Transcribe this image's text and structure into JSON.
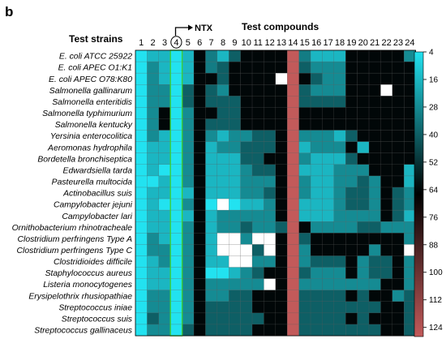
{
  "chart_data": {
    "type": "heatmap",
    "panel_label": "b",
    "title": "Test compounds",
    "row_header": "Test strains",
    "highlight_column": "4",
    "highlight_label": "NTX",
    "columns": [
      "1",
      "2",
      "3",
      "4",
      "5",
      "6",
      "7",
      "8",
      "9",
      "10",
      "11",
      "12",
      "13",
      "14",
      "15",
      "16",
      "17",
      "18",
      "19",
      "20",
      "21",
      "22",
      "23",
      "24"
    ],
    "rows": [
      "E. coli ATCC 25922",
      "E. coli APEC O1:K1",
      "E. coli APEC O78:K80",
      "Salmonella gallinarum",
      "Salmonella enteritidis",
      "Salmonella typhimurium",
      "Salmonella kentucky",
      "Yersinia enterocolitica",
      "Aeromonas hydrophila",
      "Bordetella bronchiseptica",
      "Edwardsiella tarda",
      "Pasteurella multocida",
      "Actinobacillus suis",
      "Campylobacter jejuni",
      "Campylobacter lari",
      "Ornithobacterium rhinotracheale",
      "Clostridium perfringens Type A",
      "Clostridium perfringens Type C",
      "Clostridioides difficile",
      "Staphylococcus aureus",
      "Listeria monocytogenes",
      "Erysipelothrix rhusiopathiae",
      "Streptococcus iniae",
      "Streptococcus suis",
      "Streptococcus gallinaceus"
    ],
    "values": [
      [
        4,
        16,
        16,
        4,
        16,
        64,
        32,
        16,
        40,
        64,
        64,
        64,
        64,
        128,
        32,
        16,
        16,
        16,
        64,
        64,
        64,
        64,
        64,
        28
      ],
      [
        4,
        28,
        16,
        4,
        16,
        64,
        32,
        40,
        64,
        64,
        64,
        64,
        64,
        128,
        40,
        28,
        28,
        28,
        64,
        64,
        64,
        64,
        64,
        64
      ],
      [
        4,
        28,
        16,
        4,
        16,
        64,
        64,
        40,
        64,
        64,
        64,
        64,
        128,
        128,
        64,
        40,
        28,
        28,
        64,
        64,
        64,
        64,
        64,
        64
      ],
      [
        4,
        28,
        28,
        4,
        40,
        64,
        40,
        28,
        64,
        64,
        64,
        64,
        64,
        128,
        40,
        28,
        28,
        28,
        64,
        64,
        64,
        128,
        64,
        64
      ],
      [
        4,
        28,
        28,
        4,
        40,
        64,
        40,
        40,
        40,
        64,
        64,
        64,
        64,
        128,
        40,
        40,
        40,
        40,
        64,
        64,
        64,
        64,
        64,
        64
      ],
      [
        4,
        28,
        64,
        4,
        28,
        64,
        64,
        40,
        40,
        64,
        64,
        64,
        64,
        128,
        64,
        64,
        64,
        64,
        64,
        64,
        64,
        64,
        64,
        64
      ],
      [
        4,
        28,
        64,
        4,
        28,
        64,
        40,
        40,
        40,
        64,
        64,
        64,
        64,
        128,
        64,
        64,
        64,
        64,
        64,
        64,
        64,
        64,
        64,
        64
      ],
      [
        4,
        28,
        16,
        4,
        28,
        64,
        28,
        16,
        28,
        28,
        40,
        40,
        64,
        128,
        28,
        28,
        28,
        16,
        40,
        64,
        64,
        64,
        64,
        64
      ],
      [
        4,
        16,
        16,
        4,
        28,
        64,
        16,
        28,
        28,
        40,
        40,
        40,
        64,
        128,
        16,
        28,
        28,
        28,
        64,
        16,
        64,
        64,
        64,
        64
      ],
      [
        4,
        16,
        16,
        4,
        28,
        64,
        16,
        16,
        16,
        40,
        40,
        64,
        64,
        128,
        28,
        16,
        16,
        16,
        40,
        64,
        64,
        64,
        64,
        64
      ],
      [
        4,
        16,
        4,
        4,
        28,
        64,
        16,
        16,
        16,
        28,
        40,
        40,
        64,
        128,
        16,
        16,
        16,
        28,
        28,
        28,
        64,
        64,
        64,
        16
      ],
      [
        4,
        4,
        16,
        4,
        28,
        64,
        16,
        16,
        16,
        28,
        28,
        28,
        64,
        128,
        28,
        16,
        16,
        28,
        28,
        40,
        28,
        64,
        64,
        16
      ],
      [
        4,
        16,
        16,
        4,
        16,
        64,
        16,
        16,
        16,
        28,
        28,
        40,
        64,
        128,
        28,
        16,
        16,
        28,
        40,
        40,
        28,
        64,
        40,
        28
      ],
      [
        4,
        16,
        4,
        4,
        28,
        64,
        4,
        128,
        4,
        16,
        16,
        28,
        64,
        128,
        16,
        16,
        16,
        28,
        40,
        40,
        28,
        64,
        40,
        28
      ],
      [
        4,
        16,
        16,
        4,
        16,
        64,
        16,
        28,
        28,
        28,
        28,
        28,
        64,
        128,
        16,
        16,
        16,
        28,
        28,
        28,
        28,
        64,
        40,
        16
      ],
      [
        4,
        16,
        16,
        4,
        28,
        64,
        16,
        28,
        28,
        40,
        28,
        28,
        40,
        128,
        64,
        28,
        28,
        28,
        28,
        40,
        40,
        28,
        28,
        28
      ],
      [
        4,
        28,
        16,
        4,
        28,
        64,
        16,
        128,
        128,
        28,
        128,
        128,
        64,
        128,
        40,
        64,
        64,
        64,
        64,
        64,
        64,
        64,
        64,
        28
      ],
      [
        4,
        28,
        28,
        4,
        28,
        64,
        16,
        128,
        128,
        128,
        40,
        128,
        64,
        128,
        28,
        64,
        64,
        64,
        64,
        64,
        28,
        64,
        64,
        128
      ],
      [
        4,
        16,
        28,
        4,
        28,
        64,
        16,
        16,
        128,
        128,
        28,
        28,
        64,
        128,
        28,
        40,
        40,
        40,
        64,
        28,
        40,
        40,
        64,
        28
      ],
      [
        4,
        16,
        16,
        4,
        28,
        64,
        4,
        4,
        16,
        28,
        40,
        64,
        64,
        128,
        40,
        28,
        28,
        28,
        64,
        28,
        40,
        40,
        64,
        28
      ],
      [
        4,
        16,
        16,
        4,
        28,
        64,
        28,
        28,
        28,
        28,
        28,
        128,
        64,
        128,
        28,
        28,
        28,
        28,
        28,
        28,
        28,
        64,
        64,
        28
      ],
      [
        4,
        28,
        28,
        4,
        28,
        64,
        28,
        28,
        40,
        40,
        64,
        64,
        64,
        128,
        40,
        40,
        40,
        40,
        64,
        40,
        64,
        64,
        28,
        40
      ],
      [
        4,
        28,
        28,
        4,
        28,
        64,
        40,
        40,
        40,
        40,
        64,
        64,
        64,
        128,
        40,
        40,
        40,
        40,
        40,
        40,
        40,
        64,
        64,
        40
      ],
      [
        4,
        40,
        28,
        4,
        28,
        64,
        40,
        40,
        40,
        40,
        40,
        64,
        64,
        128,
        40,
        40,
        40,
        40,
        64,
        40,
        64,
        64,
        64,
        40
      ],
      [
        4,
        28,
        28,
        4,
        40,
        64,
        40,
        40,
        40,
        40,
        64,
        64,
        64,
        128,
        40,
        40,
        40,
        40,
        40,
        40,
        40,
        64,
        64,
        40
      ]
    ],
    "colorbar": {
      "min": 4,
      "max": 128,
      "ticks": [
        4,
        16,
        28,
        40,
        52,
        64,
        76,
        88,
        100,
        112,
        124
      ],
      "colors": [
        "#22e2f0",
        "#000000",
        "#c25a5a"
      ]
    },
    "white_value": 128
  }
}
